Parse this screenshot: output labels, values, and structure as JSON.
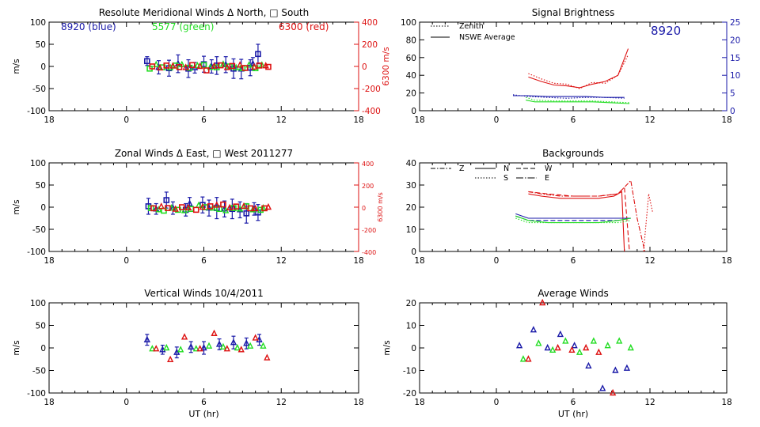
{
  "colors": {
    "blue": "#1a1aa8",
    "green": "#22dd22",
    "red": "#dd1111",
    "axis": "#000000"
  },
  "chart_data": [
    {
      "id": "meridional",
      "type": "scatter",
      "title": "Resolute Meridional Winds Δ North, □ South",
      "ylabel": "m/s",
      "y2label": "6300 m/s",
      "xlim": [
        18,
        42
      ],
      "xticks": [
        18,
        24,
        30,
        36,
        42
      ],
      "xticklabels": [
        "18",
        "0",
        "6",
        "12",
        "18"
      ],
      "ylim": [
        -100,
        100
      ],
      "yticks": [
        -100,
        -50,
        0,
        50,
        100
      ],
      "y2lim": [
        -400,
        400
      ],
      "y2ticks": [
        -400,
        -200,
        0,
        200,
        400
      ],
      "annotations": [
        {
          "text": "8920 (blue)",
          "color": "blue"
        },
        {
          "text": "5577 (green)",
          "color": "green"
        },
        {
          "text": "6300 (red)",
          "color": "red"
        }
      ],
      "series": [
        {
          "color": "blue",
          "marker": "square",
          "errorbars": true,
          "x": [
            25.6,
            27.3,
            28.8,
            30.0,
            31.0,
            32.3,
            33.6,
            34.2
          ],
          "y": [
            12,
            -4,
            -5,
            5,
            2,
            -5,
            -3,
            28
          ],
          "err": [
            10,
            18,
            20,
            18,
            20,
            22,
            18,
            22
          ]
        },
        {
          "color": "blue",
          "marker": "triangle",
          "errorbars": true,
          "x": [
            26.5,
            28.0,
            29.3,
            30.6,
            31.7,
            32.9,
            33.8
          ],
          "y": [
            -2,
            6,
            -3,
            0,
            4,
            -6,
            6
          ],
          "err": [
            15,
            20,
            12,
            15,
            18,
            22,
            14
          ]
        },
        {
          "color": "green",
          "marker": "square",
          "x": [
            25.8,
            26.8,
            27.8,
            28.9,
            30.0,
            31.0,
            32.0,
            33.0,
            34.0
          ],
          "y": [
            -5,
            -2,
            2,
            -3,
            3,
            -2,
            0,
            -4,
            -4
          ]
        },
        {
          "color": "green",
          "marker": "triangle",
          "x": [
            26.3,
            27.4,
            28.3,
            29.5,
            30.5,
            31.5,
            32.5,
            33.5,
            34.5
          ],
          "y": [
            4,
            -3,
            4,
            2,
            -2,
            5,
            -3,
            3,
            3
          ]
        },
        {
          "color": "red",
          "marker": "square",
          "axis": "y2",
          "x": [
            26.0,
            27.1,
            28.1,
            29.1,
            30.2,
            31.3,
            32.2,
            33.2,
            34.3,
            35.0
          ],
          "y": [
            0,
            8,
            -6,
            12,
            -36,
            10,
            4,
            -14,
            8,
            -4
          ]
        },
        {
          "color": "red",
          "marker": "triangle",
          "axis": "y2",
          "x": [
            26.6,
            27.6,
            28.6,
            29.7,
            30.8,
            31.8,
            32.8,
            33.9,
            34.8
          ],
          "y": [
            -14,
            4,
            -10,
            0,
            2,
            -10,
            12,
            -6,
            6
          ]
        }
      ]
    },
    {
      "id": "zonal",
      "type": "scatter",
      "title": "Zonal Winds Δ East, □ West 2011277",
      "ylabel": "m/s",
      "y2label": "6300 m/s",
      "xlim": [
        18,
        42
      ],
      "xticks": [
        18,
        24,
        30,
        36,
        42
      ],
      "xticklabels": [
        "18",
        "0",
        "6",
        "12",
        "18"
      ],
      "ylim": [
        -100,
        100
      ],
      "yticks": [
        -100,
        -50,
        0,
        50,
        100
      ],
      "y2lim": [
        -400,
        400
      ],
      "y2ticks": [
        -400,
        -200,
        0,
        200,
        400
      ],
      "series": [
        {
          "color": "blue",
          "marker": "square",
          "errorbars": true,
          "x": [
            25.7,
            27.1,
            28.6,
            29.9,
            31.0,
            32.2,
            33.3,
            34.2
          ],
          "y": [
            2,
            16,
            -6,
            5,
            -2,
            -4,
            -14,
            -12
          ],
          "err": [
            18,
            18,
            14,
            18,
            24,
            22,
            22,
            18
          ]
        },
        {
          "color": "blue",
          "marker": "triangle",
          "errorbars": true,
          "x": [
            26.3,
            27.6,
            28.9,
            30.4,
            31.6,
            32.8,
            33.9
          ],
          "y": [
            -4,
            -2,
            8,
            -2,
            -4,
            -6,
            -4
          ],
          "err": [
            12,
            14,
            14,
            18,
            18,
            18,
            14
          ]
        },
        {
          "color": "green",
          "marker": "square",
          "x": [
            25.9,
            26.9,
            28.0,
            29.0,
            30.1,
            31.2,
            32.3,
            33.3,
            34.4
          ],
          "y": [
            -2,
            -8,
            -6,
            -4,
            0,
            -4,
            -2,
            2,
            -6
          ]
        },
        {
          "color": "green",
          "marker": "triangle",
          "x": [
            26.5,
            27.5,
            28.5,
            29.6,
            30.7,
            31.7,
            32.8,
            33.8,
            34.6
          ],
          "y": [
            -6,
            -2,
            -8,
            4,
            -2,
            -8,
            -4,
            -6,
            -2
          ]
        },
        {
          "color": "red",
          "marker": "square",
          "axis": "y2",
          "x": [
            26.1,
            27.2,
            28.3,
            29.4,
            30.5,
            31.5,
            32.5,
            33.6,
            34.7
          ],
          "y": [
            -10,
            -8,
            0,
            -24,
            8,
            24,
            6,
            -10,
            -10
          ]
        },
        {
          "color": "red",
          "marker": "triangle",
          "axis": "y2",
          "x": [
            26.7,
            27.8,
            28.8,
            29.9,
            31.0,
            32.0,
            33.1,
            34.0,
            35.0
          ],
          "y": [
            6,
            -18,
            -6,
            0,
            18,
            -6,
            8,
            -14,
            0
          ]
        }
      ]
    },
    {
      "id": "vertical",
      "type": "scatter",
      "title": "Vertical Winds 10/4/2011",
      "ylabel": "m/s",
      "xlabel": "UT (hr)",
      "xlim": [
        18,
        42
      ],
      "xticks": [
        18,
        24,
        30,
        36,
        42
      ],
      "xticklabels": [
        "18",
        "0",
        "6",
        "12",
        "18"
      ],
      "ylim": [
        -100,
        100
      ],
      "yticks": [
        -100,
        -50,
        0,
        50,
        100
      ],
      "series": [
        {
          "color": "blue",
          "marker": "triangle",
          "errorbars": true,
          "x": [
            25.6,
            26.8,
            27.9,
            29.0,
            30.0,
            31.2,
            32.3,
            33.3,
            34.3
          ],
          "y": [
            18,
            -4,
            -10,
            2,
            0,
            8,
            12,
            10,
            18
          ],
          "err": [
            12,
            10,
            12,
            12,
            14,
            12,
            14,
            12,
            12
          ]
        },
        {
          "color": "green",
          "marker": "triangle",
          "x": [
            26.0,
            27.1,
            28.2,
            29.4,
            30.4,
            31.5,
            32.6,
            33.6,
            34.6
          ],
          "y": [
            -2,
            0,
            -4,
            -2,
            4,
            2,
            0,
            4,
            4
          ]
        },
        {
          "color": "red",
          "marker": "triangle",
          "x": [
            26.3,
            27.4,
            28.5,
            29.7,
            30.8,
            31.8,
            32.9,
            34.0,
            34.9
          ],
          "y": [
            -2,
            -26,
            24,
            -2,
            32,
            -2,
            -4,
            22,
            -22
          ]
        }
      ]
    },
    {
      "id": "brightness",
      "type": "line",
      "title": "Signal Brightness",
      "xlim": [
        18,
        42
      ],
      "xticks": [
        18,
        24,
        30,
        36,
        42
      ],
      "xticklabels": [
        "18",
        "0",
        "6",
        "12",
        "18"
      ],
      "ylim": [
        0,
        100
      ],
      "yticks": [
        0,
        20,
        40,
        60,
        80,
        100
      ],
      "y2lim": [
        0,
        25
      ],
      "y2ticks": [
        0,
        5,
        10,
        15,
        20,
        25
      ],
      "legend": [
        {
          "label": "Zenith",
          "dash": "dotted"
        },
        {
          "label": "NSWE Average",
          "dash": "solid"
        }
      ],
      "annotation": "8920",
      "series": [
        {
          "color": "red",
          "dash": "solid",
          "x": [
            26.5,
            27.5,
            28.5,
            29.5,
            30.5,
            31.5,
            32.5,
            33.5,
            34.3
          ],
          "y": [
            38,
            33,
            29,
            28,
            26,
            30,
            33,
            40,
            70
          ]
        },
        {
          "color": "red",
          "dash": "dotted",
          "x": [
            26.5,
            27.5,
            28.5,
            29.5,
            30.5,
            31.5,
            32.5,
            33.5,
            34.3
          ],
          "y": [
            42,
            36,
            31,
            30,
            25,
            32,
            31,
            40,
            63
          ]
        },
        {
          "color": "blue",
          "dash": "solid",
          "x": [
            25.3,
            26.5,
            28.0,
            29.5,
            31.0,
            32.5,
            34.0
          ],
          "y": [
            17,
            17,
            16,
            16,
            16,
            15,
            15
          ]
        },
        {
          "color": "blue",
          "dash": "dotted",
          "x": [
            25.3,
            26.5,
            28.0,
            29.5,
            31.0,
            32.5,
            34.0
          ],
          "y": [
            18,
            16,
            15,
            14,
            15,
            15,
            14
          ]
        },
        {
          "color": "green",
          "dash": "solid",
          "x": [
            26.3,
            27.0,
            28.5,
            30.0,
            31.5,
            33.0,
            34.4
          ],
          "y": [
            12,
            10,
            10,
            10,
            10,
            9,
            8
          ]
        },
        {
          "color": "green",
          "dash": "dotted",
          "x": [
            26.3,
            27.0,
            28.5,
            30.0,
            31.5,
            33.0,
            34.4
          ],
          "y": [
            15,
            12,
            11,
            11,
            11,
            10,
            9
          ]
        }
      ]
    },
    {
      "id": "backgrounds",
      "type": "line",
      "title": "Backgrounds",
      "xlim": [
        18,
        42
      ],
      "xticks": [
        18,
        24,
        30,
        36,
        42
      ],
      "xticklabels": [
        "18",
        "0",
        "6",
        "12",
        "18"
      ],
      "ylim": [
        0,
        40
      ],
      "yticks": [
        0,
        10,
        20,
        30,
        40
      ],
      "legend": [
        {
          "label": "Z",
          "dash": "dashdot"
        },
        {
          "label": "N",
          "dash": "solid"
        },
        {
          "label": "W",
          "dash": "dashed"
        },
        {
          "label": "S",
          "dash": "dotted"
        },
        {
          "label": "E",
          "dash": "longdashdot"
        }
      ],
      "series": [
        {
          "color": "red",
          "dash": "solid",
          "x": [
            26.5,
            27.5,
            29.0,
            30.5,
            32.0,
            33.2,
            33.8,
            34.0
          ],
          "y": [
            26,
            25,
            24,
            24,
            24,
            25,
            27,
            0
          ]
        },
        {
          "color": "red",
          "dash": "dashdot",
          "x": [
            26.5,
            27.5,
            29.0,
            30.5,
            32.0,
            33.5,
            34.5,
            35.0,
            35.6
          ],
          "y": [
            27,
            26,
            25,
            25,
            25,
            26,
            32,
            15,
            0
          ]
        },
        {
          "color": "red",
          "dash": "dashed",
          "x": [
            26.5,
            28.0,
            30.0,
            32.0,
            33.5,
            34.0,
            34.4
          ],
          "y": [
            27,
            26,
            25,
            25,
            26,
            29,
            0
          ]
        },
        {
          "color": "red",
          "dash": "dotted",
          "x": [
            35.5,
            35.9,
            36.2
          ],
          "y": [
            0,
            26,
            18
          ]
        },
        {
          "color": "blue",
          "dash": "solid",
          "x": [
            25.5,
            26.5,
            28.0,
            30.0,
            32.0,
            33.5,
            34.5
          ],
          "y": [
            17,
            15,
            15,
            15,
            15,
            15,
            15
          ]
        },
        {
          "color": "blue",
          "dash": "dashed",
          "x": [
            25.5,
            26.5,
            28.0,
            30.0,
            32.0,
            33.5,
            34.5
          ],
          "y": [
            16,
            14,
            14,
            14,
            14,
            14,
            15
          ]
        },
        {
          "color": "green",
          "dash": "solid",
          "x": [
            25.5,
            26.5,
            28.0,
            30.0,
            32.0,
            33.5,
            34.5
          ],
          "y": [
            16,
            14,
            13,
            13,
            13,
            14,
            15
          ]
        },
        {
          "color": "green",
          "dash": "dotted",
          "x": [
            25.5,
            26.5,
            28.0,
            30.0,
            32.0,
            33.5,
            34.5
          ],
          "y": [
            15,
            13,
            13,
            13,
            13,
            13,
            14
          ]
        }
      ]
    },
    {
      "id": "average",
      "type": "scatter",
      "title": "Average Winds",
      "ylabel": "m/s",
      "xlabel": "UT (hr)",
      "xlim": [
        18,
        42
      ],
      "xticks": [
        18,
        24,
        30,
        36,
        42
      ],
      "xticklabels": [
        "18",
        "0",
        "6",
        "12",
        "18"
      ],
      "ylim": [
        -20,
        20
      ],
      "yticks": [
        -20,
        -10,
        0,
        10,
        20
      ],
      "series": [
        {
          "color": "blue",
          "marker": "triangle",
          "x": [
            25.8,
            26.9,
            28.0,
            29.0,
            30.1,
            31.2,
            32.3,
            33.3,
            34.2
          ],
          "y": [
            1,
            8,
            0,
            6,
            1,
            -8,
            -18,
            -10,
            -9
          ]
        },
        {
          "color": "green",
          "marker": "triangle",
          "x": [
            26.1,
            27.3,
            28.4,
            29.4,
            30.5,
            31.6,
            32.7,
            33.6,
            34.5
          ],
          "y": [
            -5,
            2,
            -1,
            3,
            -2,
            3,
            1,
            3,
            0
          ]
        },
        {
          "color": "red",
          "marker": "triangle",
          "x": [
            26.5,
            27.6,
            28.8,
            29.9,
            31.0,
            32.0,
            33.1
          ],
          "y": [
            -5,
            20,
            0,
            -1,
            0,
            -2,
            -20
          ]
        }
      ]
    }
  ]
}
